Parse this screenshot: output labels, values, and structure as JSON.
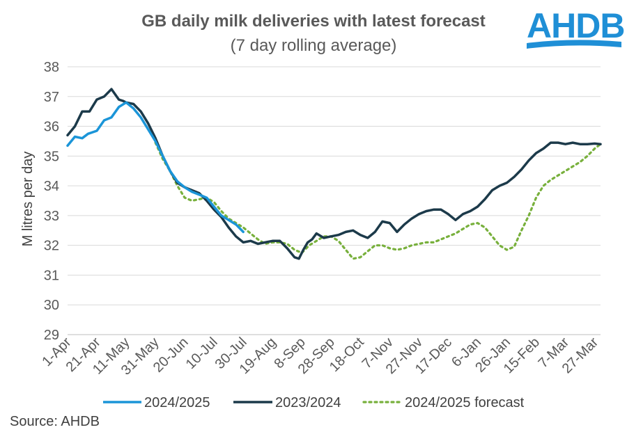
{
  "logo": {
    "text": "AHDB",
    "color": "#1f8fd6"
  },
  "source": "Source: AHDB",
  "chart_data": {
    "type": "line",
    "title": "GB daily milk deliveries with latest forecast",
    "subtitle": "(7 day rolling average)",
    "ylabel": "M litres per day",
    "xlabel": "",
    "ylim": [
      29,
      38
    ],
    "yticks": [
      29,
      30,
      31,
      32,
      33,
      34,
      35,
      36,
      37,
      38
    ],
    "x_tick_labels": [
      "1-Apr",
      "21-Apr",
      "11-May",
      "31-May",
      "20-Jun",
      "10-Jul",
      "30-Jul",
      "19-Aug",
      "8-Sep",
      "28-Sep",
      "18-Oct",
      "7-Nov",
      "27-Nov",
      "17-Dec",
      "6-Jan",
      "26-Jan",
      "15-Feb",
      "7-Mar",
      "27-Mar"
    ],
    "x_tick_days": [
      0,
      20,
      40,
      60,
      80,
      100,
      120,
      140,
      160,
      180,
      200,
      220,
      240,
      260,
      280,
      300,
      320,
      340,
      360
    ],
    "xlim": [
      0,
      364
    ],
    "grid": true,
    "legend_position": "bottom",
    "series": [
      {
        "name": "2024/2025",
        "color": "#1b95d8",
        "style": "solid",
        "x_days": [
          0,
          5,
          10,
          14,
          20,
          25,
          30,
          35,
          40,
          45,
          50,
          55,
          60,
          65,
          70,
          75,
          80,
          85,
          90,
          95,
          100,
          105,
          110,
          115,
          120
        ],
        "values": [
          35.35,
          35.65,
          35.6,
          35.75,
          35.85,
          36.2,
          36.3,
          36.65,
          36.8,
          36.6,
          36.3,
          35.9,
          35.5,
          35.0,
          34.5,
          34.15,
          33.95,
          33.8,
          33.7,
          33.6,
          33.3,
          33.0,
          32.85,
          32.7,
          32.45
        ]
      },
      {
        "name": "2023/2024",
        "color": "#1c3a4a",
        "style": "solid",
        "x_days": [
          0,
          5,
          10,
          15,
          20,
          25,
          30,
          35,
          38,
          40,
          45,
          50,
          55,
          60,
          65,
          70,
          75,
          80,
          85,
          90,
          95,
          100,
          105,
          110,
          115,
          120,
          125,
          130,
          135,
          140,
          145,
          150,
          155,
          158,
          161,
          164,
          167,
          170,
          175,
          180,
          185,
          190,
          195,
          200,
          205,
          210,
          215,
          220,
          225,
          230,
          235,
          240,
          245,
          250,
          255,
          260,
          265,
          270,
          275,
          280,
          285,
          290,
          295,
          300,
          305,
          310,
          315,
          320,
          325,
          330,
          335,
          340,
          345,
          350,
          355,
          360,
          364
        ],
        "values": [
          35.7,
          36.0,
          36.5,
          36.5,
          36.9,
          37.0,
          37.25,
          36.9,
          36.85,
          36.8,
          36.75,
          36.5,
          36.1,
          35.6,
          35.0,
          34.5,
          34.1,
          33.95,
          33.85,
          33.75,
          33.5,
          33.2,
          32.95,
          32.6,
          32.3,
          32.1,
          32.15,
          32.05,
          32.1,
          32.15,
          32.15,
          31.9,
          31.6,
          31.55,
          31.85,
          32.1,
          32.2,
          32.4,
          32.25,
          32.3,
          32.35,
          32.45,
          32.5,
          32.35,
          32.25,
          32.45,
          32.8,
          32.75,
          32.45,
          32.7,
          32.9,
          33.05,
          33.15,
          33.2,
          33.2,
          33.05,
          32.85,
          33.05,
          33.15,
          33.3,
          33.55,
          33.85,
          34.0,
          34.1,
          34.3,
          34.55,
          34.85,
          35.1,
          35.25,
          35.45,
          35.45,
          35.4,
          35.45,
          35.4,
          35.4,
          35.42,
          35.4
        ]
      },
      {
        "name": "2024/2025 forecast",
        "color": "#78b03c",
        "style": "dotted",
        "x_days": [
          60,
          65,
          70,
          75,
          80,
          85,
          90,
          95,
          100,
          105,
          110,
          115,
          120,
          125,
          130,
          135,
          140,
          145,
          150,
          155,
          160,
          165,
          170,
          175,
          180,
          185,
          190,
          195,
          200,
          205,
          210,
          215,
          220,
          225,
          230,
          235,
          240,
          245,
          250,
          255,
          260,
          265,
          270,
          275,
          280,
          285,
          290,
          295,
          300,
          305,
          310,
          315,
          320,
          325,
          330,
          335,
          340,
          345,
          350,
          355,
          360,
          364
        ],
        "values": [
          35.45,
          34.9,
          34.5,
          34.0,
          33.6,
          33.5,
          33.55,
          33.6,
          33.45,
          33.15,
          32.9,
          32.75,
          32.6,
          32.4,
          32.2,
          32.05,
          32.1,
          32.1,
          32.05,
          31.85,
          31.75,
          32.0,
          32.15,
          32.3,
          32.3,
          32.15,
          31.85,
          31.55,
          31.6,
          31.8,
          32.0,
          32.0,
          31.9,
          31.85,
          31.9,
          32.0,
          32.05,
          32.1,
          32.1,
          32.2,
          32.3,
          32.4,
          32.55,
          32.7,
          32.75,
          32.6,
          32.3,
          32.0,
          31.85,
          31.95,
          32.5,
          33.0,
          33.6,
          34.0,
          34.2,
          34.35,
          34.5,
          34.65,
          34.8,
          35.0,
          35.25,
          35.4
        ]
      }
    ]
  }
}
